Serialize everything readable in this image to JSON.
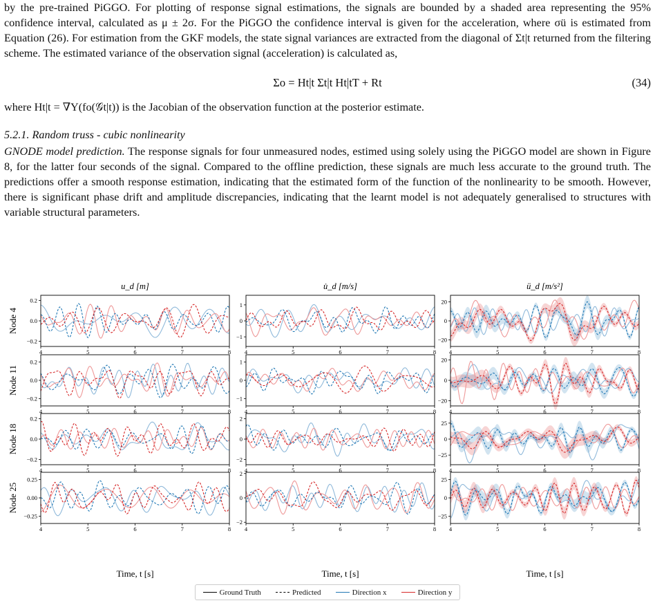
{
  "text": {
    "p1": "by the pre-trained PiGGO. For plotting of response signal estimations, the signals are bounded by a shaded area representing the 95% confidence interval, calculated as μ ± 2σ. For the PiGGO the confidence interval is given for the acceleration, where σü is estimated from Equation (26). For estimation from the GKF models, the state signal variances are extracted from the diagonal of Σt|t returned from the filtering scheme. The estimated variance of the observation signal (acceleration) is calculated as,",
    "eq34": "Σo = Ht|t Σt|t Ht|tT + Rt",
    "eq34_num": "(34)",
    "p2": "where Ht|t = ∇Y(fo(𝒢t|t)) is the Jacobian of the observation function at the posterior estimate.",
    "section": "5.2.1. Random truss - cubic nonlinearity",
    "p3_lead": "GNODE model prediction.",
    "p3": "The response signals for four unmeasured nodes, estimed using solely using the PiGGO model are shown in Figure 8, for the latter four seconds of the signal. Compared to the offline prediction, these signals are much less accurate to the ground truth. The predictions offer a smooth response estimation, indicating that the estimated form of the function of the nonlinearity to be smooth. However, there is significant phase drift and amplitude discrepancies, indicating that the learnt model is not adequately generalised to structures with variable structural parameters."
  },
  "colors": {
    "x": "#1f77b4",
    "y": "#d62728",
    "x_light": "#8fb9da",
    "y_light": "#ee9898"
  },
  "legend": {
    "gt": "Ground Truth",
    "pred": "Predicted",
    "dx": "Direction x",
    "dy": "Direction y"
  },
  "chart_data": {
    "type": "line",
    "columns": [
      "u_d [m]",
      "u̇_d [m/s]",
      "ü_d [m/s²]"
    ],
    "rows": [
      "Node 4",
      "Node 11",
      "Node 18",
      "Node 25"
    ],
    "xlabel": "Time, t [s]",
    "xlim": [
      4,
      8
    ],
    "xticks": [
      4,
      5,
      6,
      7,
      8
    ],
    "ylims": [
      [
        [
          -0.25,
          0.25
        ],
        [
          -1.6,
          1.6
        ],
        [
          -27,
          27
        ]
      ],
      [
        [
          -0.28,
          0.28
        ],
        [
          -1.4,
          1.4
        ],
        [
          -25,
          25
        ]
      ],
      [
        [
          -0.25,
          0.25
        ],
        [
          -2.5,
          2.5
        ],
        [
          -40,
          40
        ]
      ],
      [
        [
          -0.35,
          0.35
        ],
        [
          -2.1,
          2.1
        ],
        [
          -35,
          35
        ]
      ]
    ],
    "yticks": [
      [
        [
          "-0.2",
          "0.0",
          "0.2"
        ],
        [
          "-1",
          "0",
          "1"
        ],
        [
          "-20",
          "0",
          "20"
        ]
      ],
      [
        [
          "-0.2",
          "0.0",
          "0.2"
        ],
        [
          "-1",
          "0",
          "1"
        ],
        [
          "-20",
          "0",
          "20"
        ]
      ],
      [
        [
          "-0.2",
          "0.0",
          "0.2"
        ],
        [
          "-2",
          "0",
          "2"
        ],
        [
          "-25",
          "0",
          "25"
        ]
      ],
      [
        [
          "-0.25",
          "0.00",
          "0.25"
        ],
        [
          "-2",
          "0",
          "2"
        ],
        [
          "-25",
          "0",
          "25"
        ]
      ]
    ],
    "series": [
      "Ground Truth x",
      "Ground Truth y",
      "Predicted x",
      "Predicted y"
    ],
    "confidence_band": "acceleration column (μ ± 2σ)"
  }
}
